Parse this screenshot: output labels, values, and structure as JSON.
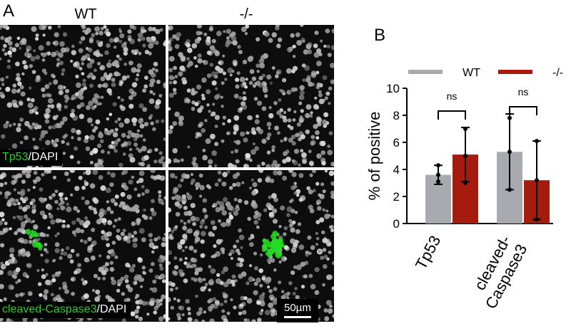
{
  "panel_a": {
    "label": "A",
    "columns": [
      "WT",
      "-/-"
    ],
    "rows": [
      {
        "stain": "Tp53",
        "counter": "/DAPI"
      },
      {
        "stain": "cleaved-Caspase3",
        "counter": "/DAPI"
      }
    ],
    "scale_bar": "50µm",
    "colors": {
      "nuclei": "#c8c8c8",
      "stain": "#22dd22",
      "background": "#0d0d0d"
    }
  },
  "panel_b": {
    "label": "B"
  },
  "chart_data": {
    "type": "bar",
    "categories": [
      "Tp53",
      "cleaved-Caspase3"
    ],
    "series": [
      {
        "name": "WT",
        "color": "#a9a9b0",
        "values": [
          3.6,
          5.3
        ],
        "error": [
          0.7,
          2.8
        ],
        "points": [
          [
            3.1,
            3.6,
            4.3
          ],
          [
            2.5,
            7.8,
            5.3
          ]
        ]
      },
      {
        "name": "-/-",
        "color": "#a51c0f",
        "values": [
          5.1,
          3.2
        ],
        "error": [
          2.0,
          2.9
        ],
        "points": [
          [
            3.0,
            5.0,
            7.0
          ],
          [
            0.3,
            3.2,
            6.1
          ]
        ]
      }
    ],
    "ylabel": "% of positive",
    "ylim": [
      0,
      10
    ],
    "yticks": [
      "0",
      "2",
      "4",
      "6",
      "8",
      "10"
    ],
    "annotations": [
      "ns",
      "ns"
    ],
    "legend_position": "top"
  }
}
